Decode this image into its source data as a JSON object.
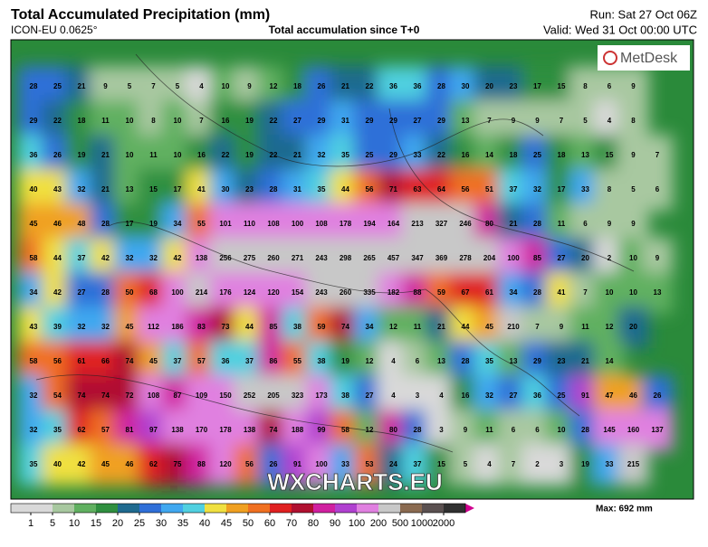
{
  "header": {
    "title": "Total Accumulated Precipitation (mm)",
    "model": "ICON-EU 0.0625°",
    "subtitle": "Total accumulation since T+0",
    "run": "Run: Sat 27 Oct 06Z",
    "valid": "Valid: Wed 31 Oct 00:00 UTC"
  },
  "logo": "MetDesk",
  "watermark": "WXCHARTS.EU",
  "grid_labels": [
    [
      28,
      25,
      21,
      9,
      5,
      7,
      5,
      4,
      10,
      9,
      12,
      18,
      26,
      21,
      22,
      36,
      36,
      28,
      30,
      20,
      23,
      17,
      15,
      8,
      6,
      9
    ],
    [
      29,
      22,
      18,
      11,
      10,
      8,
      10,
      7,
      16,
      19,
      22,
      27,
      29,
      31,
      29,
      29,
      27,
      29,
      13,
      7,
      9,
      9,
      7,
      5,
      4,
      8
    ],
    [
      36,
      26,
      19,
      21,
      10,
      11,
      10,
      16,
      22,
      19,
      22,
      21,
      32,
      35,
      25,
      29,
      33,
      22,
      16,
      14,
      18,
      25,
      18,
      13,
      15,
      9,
      7
    ],
    [
      40,
      43,
      32,
      21,
      13,
      15,
      17,
      41,
      30,
      23,
      28,
      31,
      35,
      44,
      56,
      71,
      63,
      64,
      56,
      51,
      37,
      32,
      17,
      33,
      8,
      5,
      6
    ],
    [
      45,
      46,
      48,
      28,
      17,
      19,
      34,
      55,
      101,
      110,
      108,
      100,
      108,
      178,
      194,
      164,
      213,
      327,
      246,
      80,
      21,
      28,
      11,
      6,
      9,
      9
    ],
    [
      58,
      44,
      37,
      42,
      32,
      32,
      42,
      138,
      256,
      275,
      260,
      271,
      243,
      298,
      265,
      457,
      347,
      369,
      278,
      204,
      100,
      85,
      27,
      20,
      2,
      10,
      9
    ],
    [
      34,
      42,
      27,
      28,
      50,
      68,
      100,
      214,
      176,
      124,
      120,
      154,
      243,
      260,
      335,
      182,
      88,
      59,
      67,
      61,
      34,
      28,
      41,
      7,
      10,
      10,
      13
    ],
    [
      43,
      39,
      32,
      32,
      45,
      112,
      186,
      83,
      73,
      44,
      85,
      38,
      59,
      74,
      34,
      12,
      11,
      21,
      44,
      45,
      210,
      7,
      9,
      11,
      12,
      20
    ],
    [
      58,
      56,
      61,
      66,
      74,
      45,
      37,
      57,
      36,
      37,
      86,
      55,
      38,
      19,
      12,
      4,
      6,
      13,
      28,
      35,
      13,
      29,
      23,
      21,
      14
    ],
    [
      32,
      54,
      74,
      74,
      72,
      108,
      87,
      109,
      150,
      252,
      205,
      323,
      173,
      38,
      27,
      4,
      3,
      4,
      16,
      32,
      27,
      36,
      25,
      91,
      47,
      46,
      26
    ],
    [
      32,
      35,
      62,
      57,
      81,
      97,
      138,
      170,
      178,
      138,
      74,
      188,
      99,
      58,
      12,
      80,
      28,
      3,
      9,
      11,
      6,
      6,
      10,
      28,
      145,
      160,
      137
    ],
    [
      35,
      40,
      42,
      45,
      46,
      62,
      75,
      88,
      120,
      56,
      26,
      91,
      100,
      33,
      53,
      24,
      37,
      15,
      5,
      4,
      7,
      2,
      3,
      19,
      33,
      215
    ]
  ],
  "colorbar": {
    "ticks": [
      1,
      5,
      10,
      15,
      20,
      25,
      30,
      35,
      40,
      45,
      50,
      60,
      70,
      80,
      90,
      100,
      200,
      500,
      1000,
      2000
    ],
    "max_label": "Max: 692 mm"
  }
}
